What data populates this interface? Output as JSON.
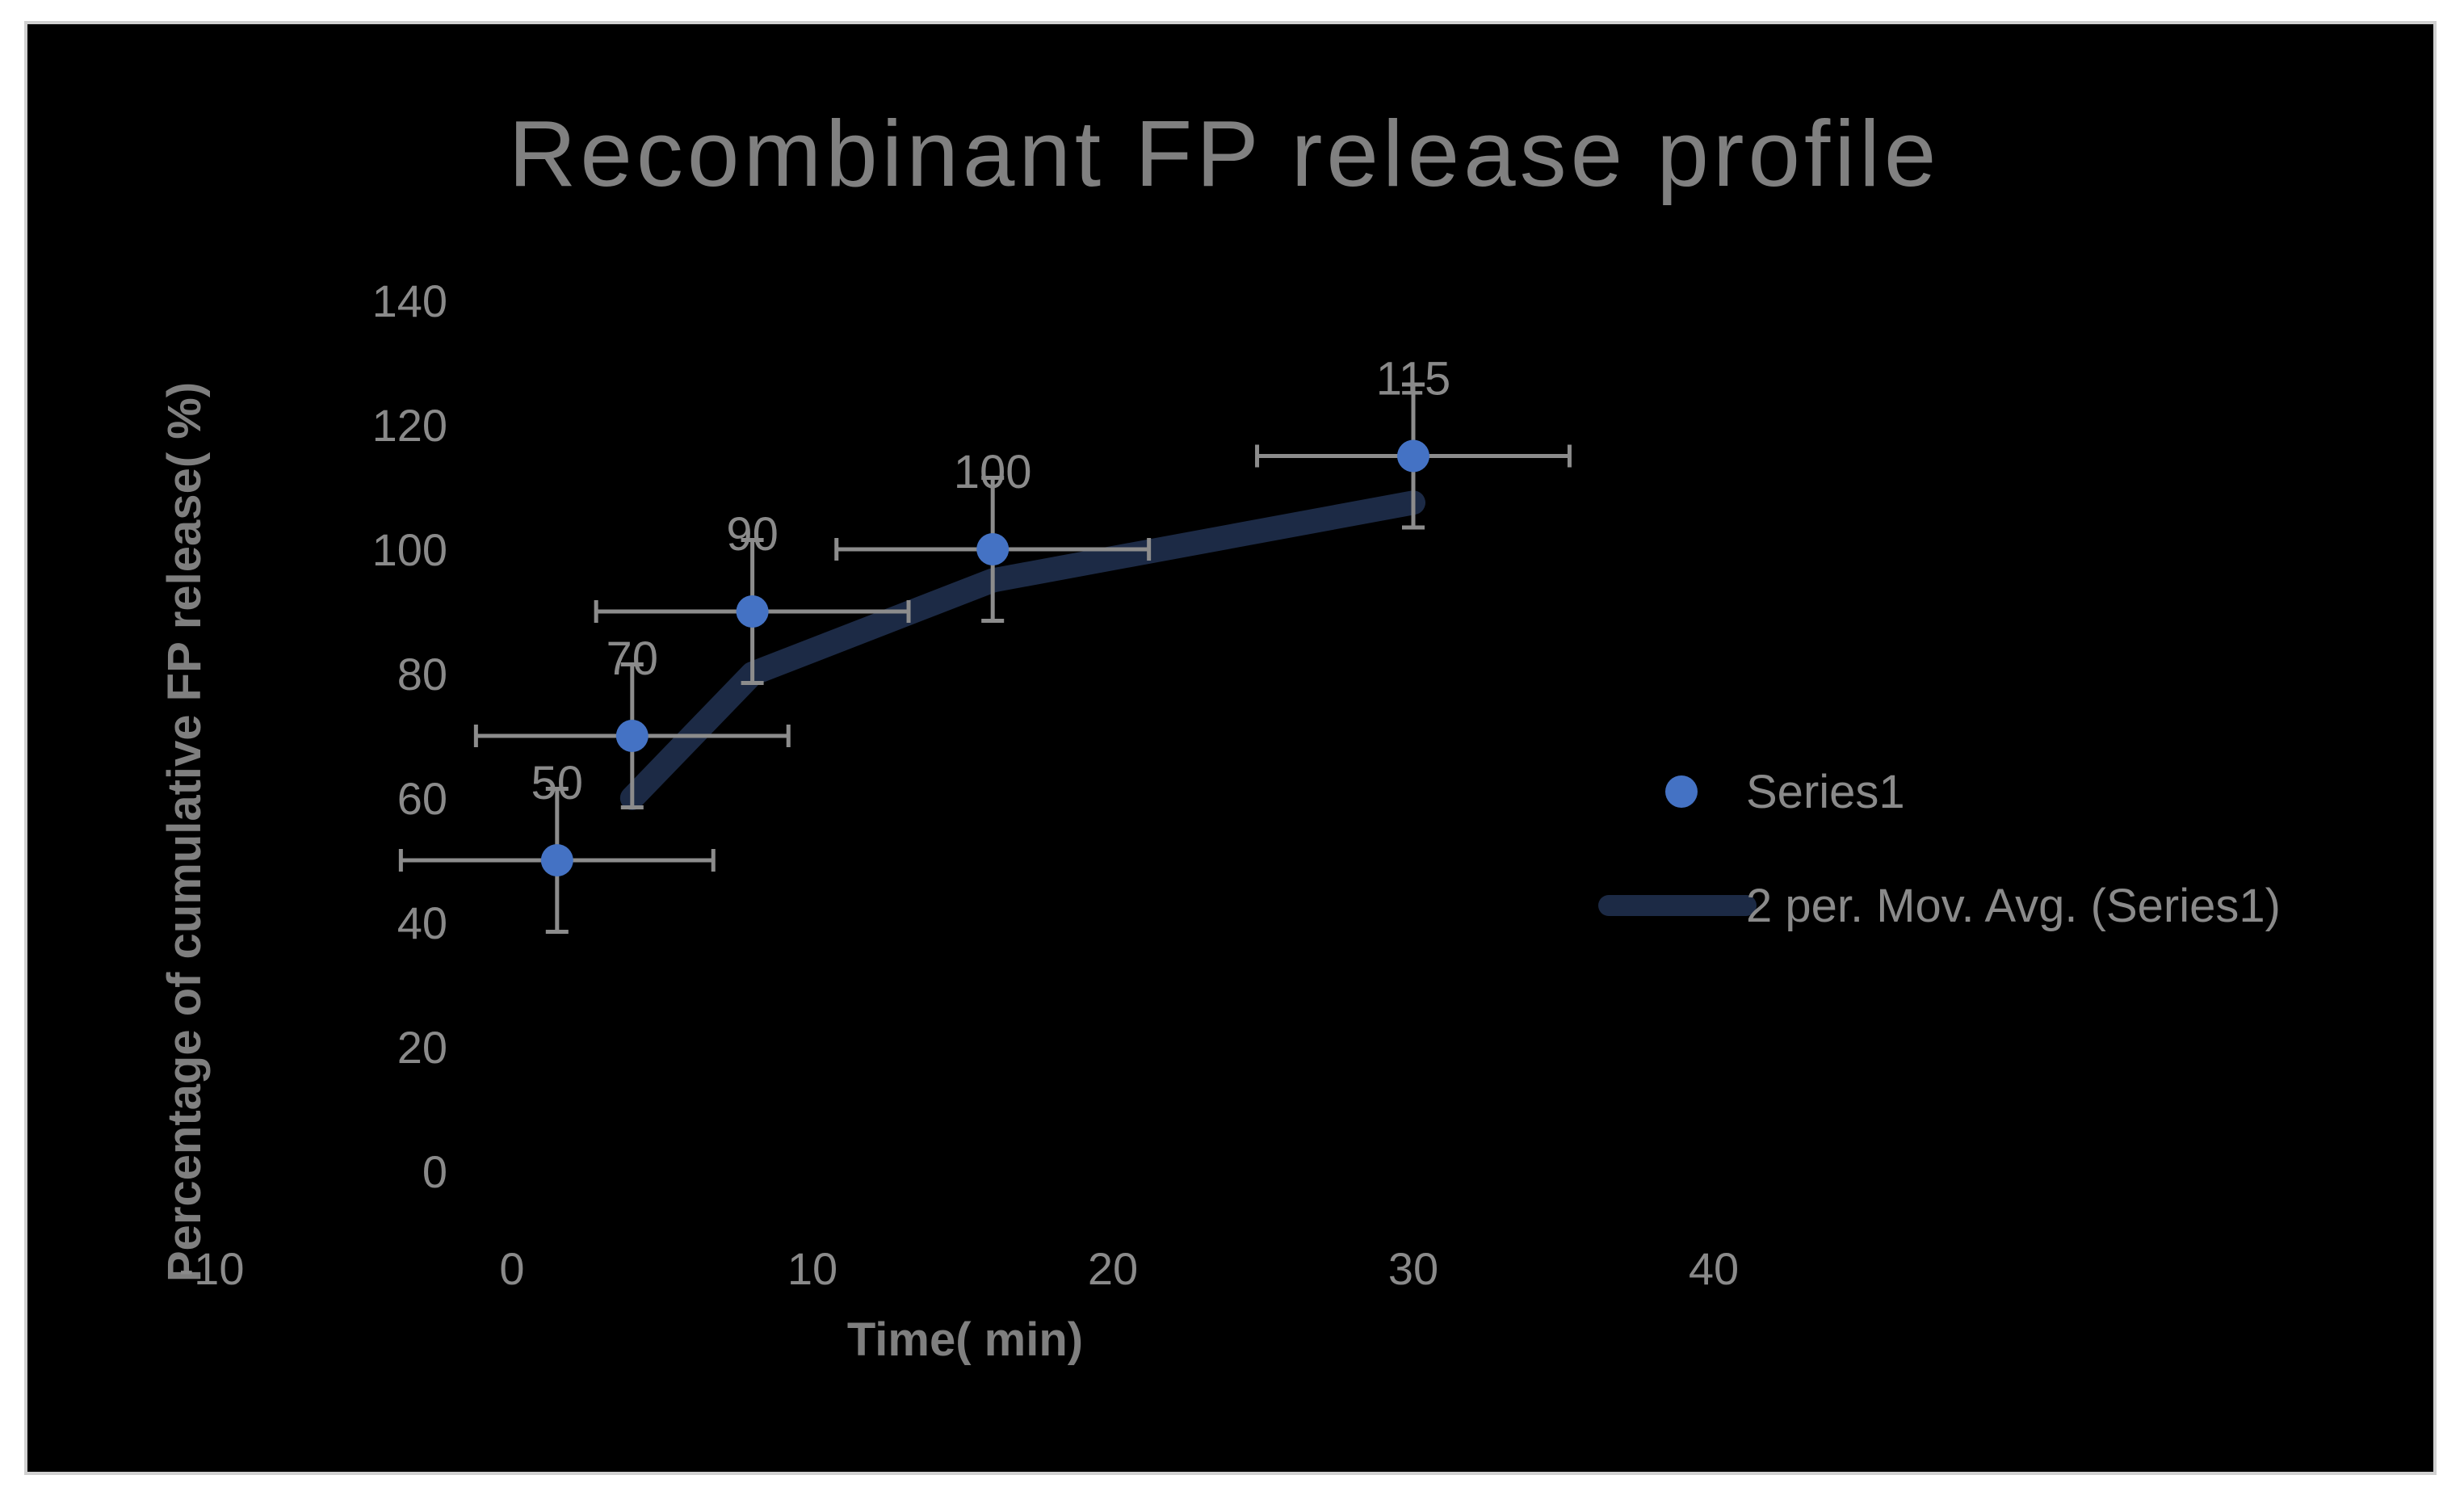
{
  "chart_data": {
    "type": "scatter",
    "title": "Recombinant FP release profile",
    "xlabel": "Time( min)",
    "ylabel": "Percentage of cumulative FP release( %)",
    "xlim": [
      -10,
      40
    ],
    "ylim": [
      0,
      140
    ],
    "x_ticks": [
      -10,
      0,
      10,
      20,
      30,
      40
    ],
    "y_ticks": [
      0,
      20,
      40,
      60,
      80,
      100,
      120,
      140
    ],
    "grid": false,
    "legend_position": "right",
    "series": [
      {
        "name": "Series1",
        "type": "scatter",
        "color": "#4472c4",
        "x": [
          1.5,
          4,
          8,
          16,
          30
        ],
        "y": [
          50,
          70,
          90,
          100,
          115
        ],
        "data_labels": [
          "50",
          "70",
          "90",
          "100",
          "115"
        ],
        "x_error": 5.2,
        "y_error": 11.5
      },
      {
        "name": "2 per. Mov. Avg. (Series1)",
        "type": "line",
        "color": "#1c2a45",
        "x": [
          4,
          8,
          16,
          30
        ],
        "y": [
          60,
          80,
          95,
          107.5
        ]
      }
    ]
  }
}
